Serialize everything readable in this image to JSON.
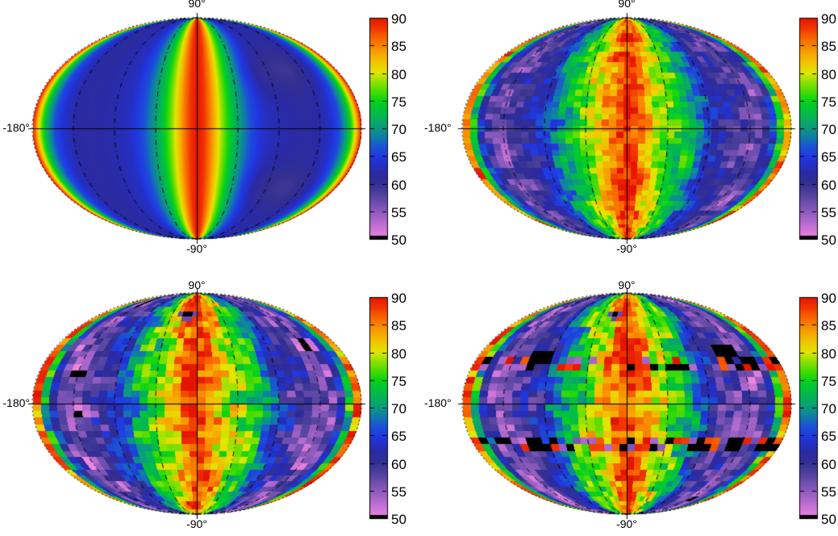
{
  "figure": {
    "background": "#ffffff",
    "description": "Four all-sky Mollweide-projection heatmaps (one smooth, three pixelated) each with a rainbow colorbar from 50 to 90"
  },
  "chart_data": {
    "type": "heatmap",
    "projection": "mollweide",
    "value_range": [
      50,
      90
    ],
    "under_range_color": "#000000",
    "grid_on": true,
    "legend_position": "right-colorbar",
    "axis_labels": {
      "top": "90°",
      "bottom": "-90°",
      "left": "-180°"
    },
    "colorbar_ticks": [
      90,
      85,
      80,
      75,
      70,
      65,
      60,
      55,
      50
    ],
    "graticule_meridians_deg": [
      -135,
      -90,
      -45,
      45,
      90,
      135
    ],
    "colormap_stops": [
      [
        50,
        "#ee86e0"
      ],
      [
        52,
        "#c973d6"
      ],
      [
        54,
        "#a062c6"
      ],
      [
        56,
        "#7852b4"
      ],
      [
        58,
        "#50429e"
      ],
      [
        60,
        "#343090"
      ],
      [
        62,
        "#2a2aa4"
      ],
      [
        64,
        "#2232d2"
      ],
      [
        65,
        "#203ae2"
      ],
      [
        67,
        "#1a58d0"
      ],
      [
        68,
        "#1274b2"
      ],
      [
        70,
        "#0c9a80"
      ],
      [
        72,
        "#06b354"
      ],
      [
        74,
        "#00ca30"
      ],
      [
        75,
        "#0ad414"
      ],
      [
        77,
        "#58dd00"
      ],
      [
        79,
        "#aae300"
      ],
      [
        80,
        "#e2e600"
      ],
      [
        82,
        "#f2c300"
      ],
      [
        84,
        "#f79c00"
      ],
      [
        85,
        "#f88200"
      ],
      [
        87,
        "#f65400"
      ],
      [
        88,
        "#f23600"
      ],
      [
        90,
        "#e41400"
      ]
    ],
    "panels": [
      {
        "id": "top-left",
        "style": "smooth",
        "profile_lons": [
          0,
          8,
          15,
          22,
          30,
          40,
          50,
          60,
          75,
          90,
          105,
          120,
          135,
          145,
          155,
          163,
          170,
          175,
          180
        ],
        "profile_vals": [
          90,
          88,
          85,
          81,
          77,
          72.5,
          69,
          66,
          63.2,
          62.5,
          62,
          61.6,
          62.2,
          63.5,
          66,
          70.5,
          77,
          83,
          90
        ],
        "dips": [
          {
            "lon": 100,
            "lat": 40,
            "rlon": 45,
            "rlat": 16,
            "amount": 2.6
          }
        ],
        "noise_amp": 0
      },
      {
        "id": "top-right",
        "style": "pixelated",
        "profile_lons": [
          0,
          12,
          22,
          32,
          45,
          58,
          70,
          80,
          90,
          100,
          112,
          122,
          132,
          140,
          148,
          155,
          161,
          166,
          170,
          174,
          178,
          180
        ],
        "profile_vals": [
          89,
          86.5,
          83,
          80,
          77,
          74,
          71,
          67.5,
          64,
          62,
          60.5,
          59,
          57.5,
          56.5,
          57.5,
          60.5,
          65,
          71,
          76,
          82,
          87.5,
          89
        ],
        "cell_lon_deg": 8,
        "cell_lat_deg": 4,
        "noise_amp": 4.5,
        "seed": 11
      },
      {
        "id": "bottom-left",
        "style": "pixelated",
        "profile_lons": [
          0,
          12,
          22,
          32,
          45,
          58,
          70,
          80,
          90,
          100,
          112,
          122,
          132,
          140,
          148,
          155,
          161,
          166,
          170,
          174,
          178,
          180
        ],
        "profile_vals": [
          89,
          86.5,
          83.5,
          80.5,
          77.5,
          74.5,
          71,
          67,
          63.5,
          61,
          59,
          57.5,
          55.5,
          54.5,
          56,
          60,
          65.5,
          71.5,
          77,
          83,
          88,
          89
        ],
        "cell_lon_deg": 9,
        "cell_lat_deg": 4.5,
        "noise_amp": 6,
        "seed": 23,
        "spots": [
          {
            "lon": -18,
            "lat": 65,
            "rlon": 14,
            "rlat": 4.5,
            "value": 57
          },
          {
            "lon": -18,
            "lat": 65,
            "rlon": 5,
            "rlat": 1.6,
            "value": 49
          },
          {
            "lon": -138,
            "lat": -42,
            "rlon": 7,
            "rlat": 4,
            "value": 50
          }
        ]
      },
      {
        "id": "bottom-right",
        "style": "pixelated",
        "profile_lons": [
          0,
          12,
          22,
          32,
          45,
          58,
          70,
          80,
          90,
          100,
          112,
          122,
          132,
          140,
          148,
          155,
          161,
          166,
          170,
          174,
          178,
          180
        ],
        "profile_vals": [
          89,
          86.5,
          83.5,
          80.5,
          77.5,
          74.5,
          71,
          67,
          63.5,
          61,
          59,
          57.5,
          55.5,
          54.5,
          56,
          60,
          65.5,
          71.5,
          77,
          83,
          88,
          89
        ],
        "cell_lon_deg": 9,
        "cell_lat_deg": 4.5,
        "noise_amp": 6,
        "seed": 37,
        "spots": [
          {
            "lon": -20,
            "lat": 65,
            "rlon": 14,
            "rlat": 4.5,
            "value": 57
          },
          {
            "lon": -20,
            "lat": 65,
            "rlon": 5,
            "rlat": 1.6,
            "value": 49
          }
        ],
        "stripe_bands": [
          {
            "lat": 28,
            "half_width": 5,
            "p_black": 0.1,
            "p_red": 0.3,
            "p_purple": 0.22
          },
          {
            "lat": -28,
            "half_width": 5,
            "p_black": 0.1,
            "p_red": 0.3,
            "p_purple": 0.22
          }
        ],
        "black_spots": [
          {
            "lon": -107,
            "lat": 31,
            "rlon": 15,
            "rlat": 5
          },
          {
            "lon": 121,
            "lat": 35,
            "rlon": 13,
            "rlat": 6
          },
          {
            "lon": 146,
            "lat": 28,
            "rlon": 7,
            "rlat": 4
          },
          {
            "lon": -108,
            "lat": -28,
            "rlon": 14,
            "rlat": 4
          },
          {
            "lon": 88,
            "lat": -28,
            "rlon": 10,
            "rlat": 4
          },
          {
            "lon": 126,
            "lat": -29,
            "rlon": 10,
            "rlat": 5
          }
        ]
      }
    ]
  }
}
